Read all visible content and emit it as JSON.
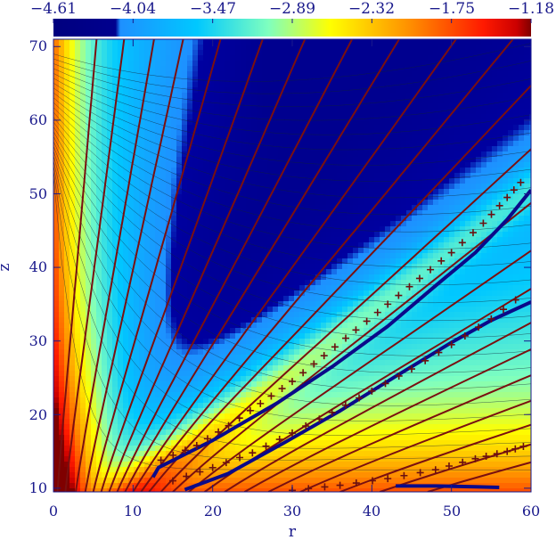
{
  "chart_data": {
    "type": "heatmap",
    "xlabel": "r",
    "ylabel": "z",
    "xlim": [
      0,
      60
    ],
    "ylim": [
      9.5,
      71
    ],
    "x_ticks": [
      0,
      10,
      20,
      30,
      40,
      50,
      60
    ],
    "y_ticks": [
      10,
      20,
      30,
      40,
      50,
      60,
      70
    ],
    "colorbar": {
      "position": "top",
      "range": [
        -4.61,
        -1.18
      ],
      "tick_labels": [
        "−4.61",
        "−4.04",
        "−3.47",
        "−2.89",
        "−2.32",
        "−1.75",
        "−1.18"
      ]
    },
    "field_lines": [
      {
        "r0": 0.5,
        "slope": 0.08
      },
      {
        "r0": 1.5,
        "slope": 0.12
      },
      {
        "r0": 2.8,
        "slope": 0.16
      },
      {
        "r0": 4.0,
        "slope": 0.2
      },
      {
        "r0": 5.0,
        "slope": 0.26
      },
      {
        "r0": 6.0,
        "slope": 0.33
      },
      {
        "r0": 7.0,
        "slope": 0.4
      },
      {
        "r0": 8.0,
        "slope": 0.48
      },
      {
        "r0": 9.0,
        "slope": 0.56
      },
      {
        "r0": 10.0,
        "slope": 0.66
      },
      {
        "r0": 11.0,
        "slope": 0.76
      },
      {
        "r0": 12.0,
        "slope": 0.87
      },
      {
        "r0": 13.5,
        "slope": 1.0
      },
      {
        "r0": 15.0,
        "slope": 1.15
      },
      {
        "r0": 17.0,
        "slope": 1.32
      },
      {
        "r0": 19.0,
        "slope": 1.5
      },
      {
        "r0": 21.5,
        "slope": 1.7
      },
      {
        "r0": 24.0,
        "slope": 1.9
      },
      {
        "r0": 27.0,
        "slope": 2.15
      },
      {
        "r0": 31.0,
        "slope": 2.45
      },
      {
        "r0": 36.0,
        "slope": 2.8
      },
      {
        "r0": 41.0,
        "slope": 3.2
      },
      {
        "r0": 47.0,
        "slope": 3.6
      }
    ],
    "thick_curves": [
      {
        "name": "",
        "points": [
          [
            12.5,
            11.5
          ],
          [
            13.2,
            12.8
          ],
          [
            20,
            16.5
          ],
          [
            28,
            21.5
          ],
          [
            35,
            26.5
          ],
          [
            42,
            32
          ],
          [
            48,
            37.5
          ],
          [
            53,
            42
          ],
          [
            57,
            46.5
          ],
          [
            60,
            50.5
          ]
        ]
      },
      {
        "name": "",
        "points": [
          [
            16.5,
            9.8
          ],
          [
            22,
            12
          ],
          [
            29,
            16.2
          ],
          [
            36,
            20.5
          ],
          [
            43,
            25.2
          ],
          [
            50,
            29.8
          ],
          [
            55,
            32.8
          ],
          [
            60,
            35.3
          ]
        ]
      },
      {
        "name": "",
        "points": [
          [
            43,
            10.3
          ],
          [
            48,
            10.3
          ],
          [
            53,
            10.2
          ],
          [
            56,
            10.1
          ]
        ]
      }
    ],
    "cross_markers": [
      {
        "name": "",
        "points": [
          [
            13.5,
            13.8
          ],
          [
            18,
            15.8
          ],
          [
            22,
            18.5
          ],
          [
            26,
            21.5
          ],
          [
            30,
            24.5
          ],
          [
            34,
            28
          ],
          [
            38,
            31.5
          ],
          [
            42,
            35
          ],
          [
            46,
            38.5
          ],
          [
            50,
            42
          ],
          [
            54,
            46
          ],
          [
            57,
            49.5
          ],
          [
            59.5,
            52.5
          ]
        ]
      },
      {
        "name": "",
        "points": [
          [
            15,
            11
          ],
          [
            20,
            12.8
          ],
          [
            25,
            14.8
          ],
          [
            30,
            17.5
          ],
          [
            35,
            20.3
          ],
          [
            40,
            23.2
          ],
          [
            45,
            26.2
          ],
          [
            50,
            29.5
          ],
          [
            55,
            33
          ],
          [
            59.5,
            36.8
          ]
        ]
      },
      {
        "name": "",
        "points": [
          [
            30,
            9.7
          ],
          [
            36,
            10.4
          ],
          [
            42,
            11.3
          ],
          [
            48,
            12.5
          ],
          [
            53,
            14
          ],
          [
            57,
            15
          ],
          [
            60,
            16
          ]
        ]
      }
    ]
  }
}
